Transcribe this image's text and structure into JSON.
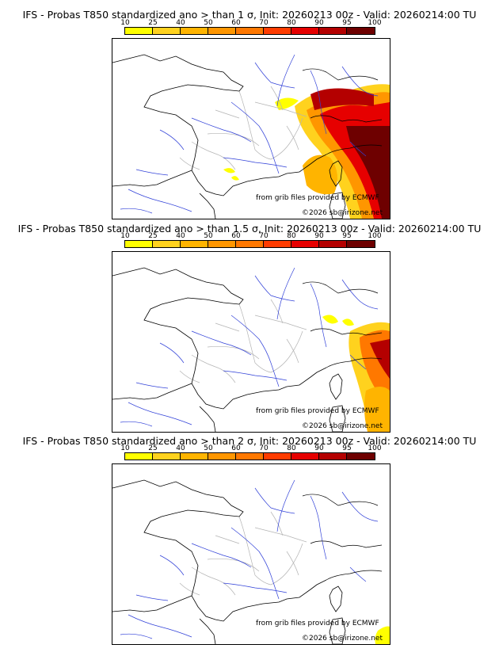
{
  "colorbar": {
    "ticks": [
      "10",
      "25",
      "40",
      "50",
      "60",
      "70",
      "80",
      "90",
      "95",
      "100"
    ],
    "colors": [
      "#ffff00",
      "#ffd21e",
      "#ffb400",
      "#ff9600",
      "#ff7800",
      "#ff3c00",
      "#e60000",
      "#b40000",
      "#6e0000"
    ]
  },
  "panels": [
    {
      "title": "IFS - Probas T850  standardized ano > than 1 σ, Init: 20260213 00z - Valid: 20260214:00 TU"
    },
    {
      "title": "IFS - Probas T850  standardized ano > than 1.5 σ, Init: 20260213 00z - Valid: 20260214:00 TU"
    },
    {
      "title": "IFS - Probas T850  standardized ano > than 2 σ, Init: 20260213 00z - Valid: 20260214:00 TU"
    }
  ],
  "credits": {
    "source": "from grib files provided by ECMWF",
    "copyright": "©2026 sb@irizone.net"
  }
}
